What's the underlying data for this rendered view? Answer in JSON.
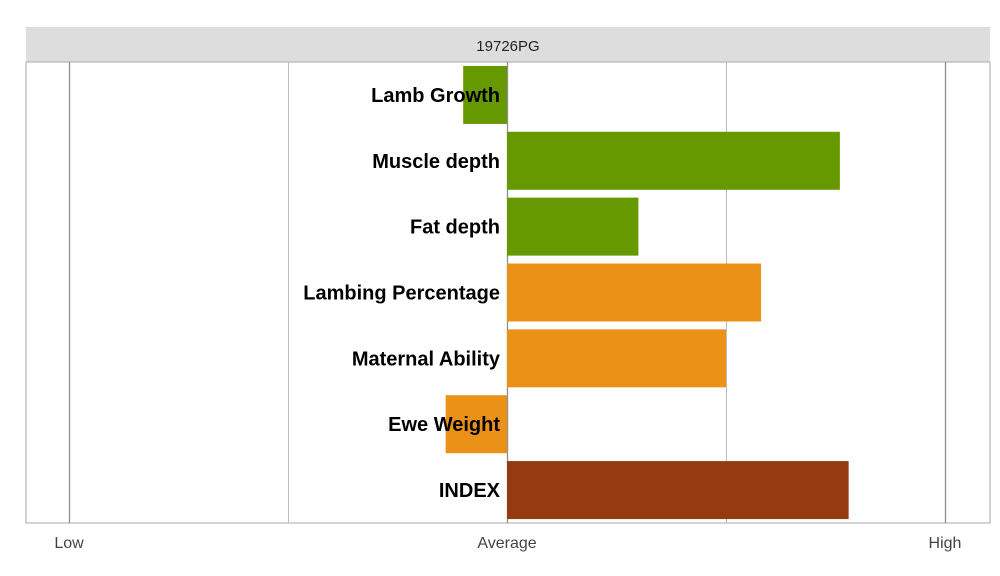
{
  "chart_data": {
    "type": "bar",
    "orientation": "horizontal",
    "title": "19726PG",
    "categories": [
      "Lamb Growth",
      "Muscle depth",
      "Fat depth",
      "Lambing Percentage",
      "Maternal Ability",
      "Ewe Weight",
      "INDEX"
    ],
    "values": [
      -0.1,
      0.76,
      0.3,
      0.58,
      0.5,
      -0.14,
      0.78
    ],
    "bar_colors": [
      "#669900",
      "#669900",
      "#669900",
      "#eb9118",
      "#eb9118",
      "#eb9118",
      "#943b12"
    ],
    "xlim": [
      -1,
      1
    ],
    "x_ticks": [
      {
        "value": -1,
        "label": "Low"
      },
      {
        "value": 0,
        "label": "Average"
      },
      {
        "value": 1,
        "label": "High"
      }
    ],
    "x_gridlines": [
      -1,
      -0.5,
      0,
      0.5,
      1
    ],
    "legend": "none",
    "colors": {
      "title_band": "#dddddd",
      "grid": "#bdbdbd",
      "axis_frame": "#aaaaaa",
      "label": "#000000",
      "tick_label": "#444444"
    }
  }
}
